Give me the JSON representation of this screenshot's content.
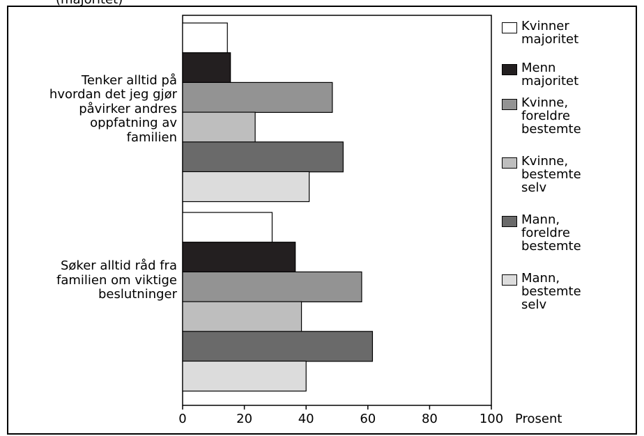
{
  "title_fragment": "(majoritet)",
  "chart_data": {
    "type": "bar",
    "orientation": "horizontal",
    "categories": [
      "Tenker alltid på\nhvordan det jeg gjør\npåvirker andres\noppfatning av\nfamilien",
      "Søker alltid råd fra\nfamilien om viktige\nbeslutninger"
    ],
    "series": [
      {
        "name": "Kvinner\nmajoritet",
        "color": "#ffffff",
        "values": [
          14.5,
          29
        ]
      },
      {
        "name": "Menn\nmajoritet",
        "color": "#231f20",
        "values": [
          15.5,
          36.5
        ]
      },
      {
        "name": "Kvinne,\nforeldre\nbestemte",
        "color": "#939393",
        "values": [
          48.5,
          58
        ]
      },
      {
        "name": "Kvinne,\nbestemte\nselv",
        "color": "#bebebe",
        "values": [
          23.5,
          38.5
        ]
      },
      {
        "name": "Mann,\nforeldre\nbestemte",
        "color": "#6a6a6a",
        "values": [
          52,
          61.5
        ]
      },
      {
        "name": "Mann,\nbestemte\nselv",
        "color": "#dcdcdc",
        "values": [
          41,
          40
        ]
      }
    ],
    "xlim": [
      0,
      100
    ],
    "xticks": [
      "0",
      "20",
      "40",
      "60",
      "80",
      "100"
    ],
    "xlabel": "Prosent",
    "legend_position": "right",
    "grid": false
  }
}
